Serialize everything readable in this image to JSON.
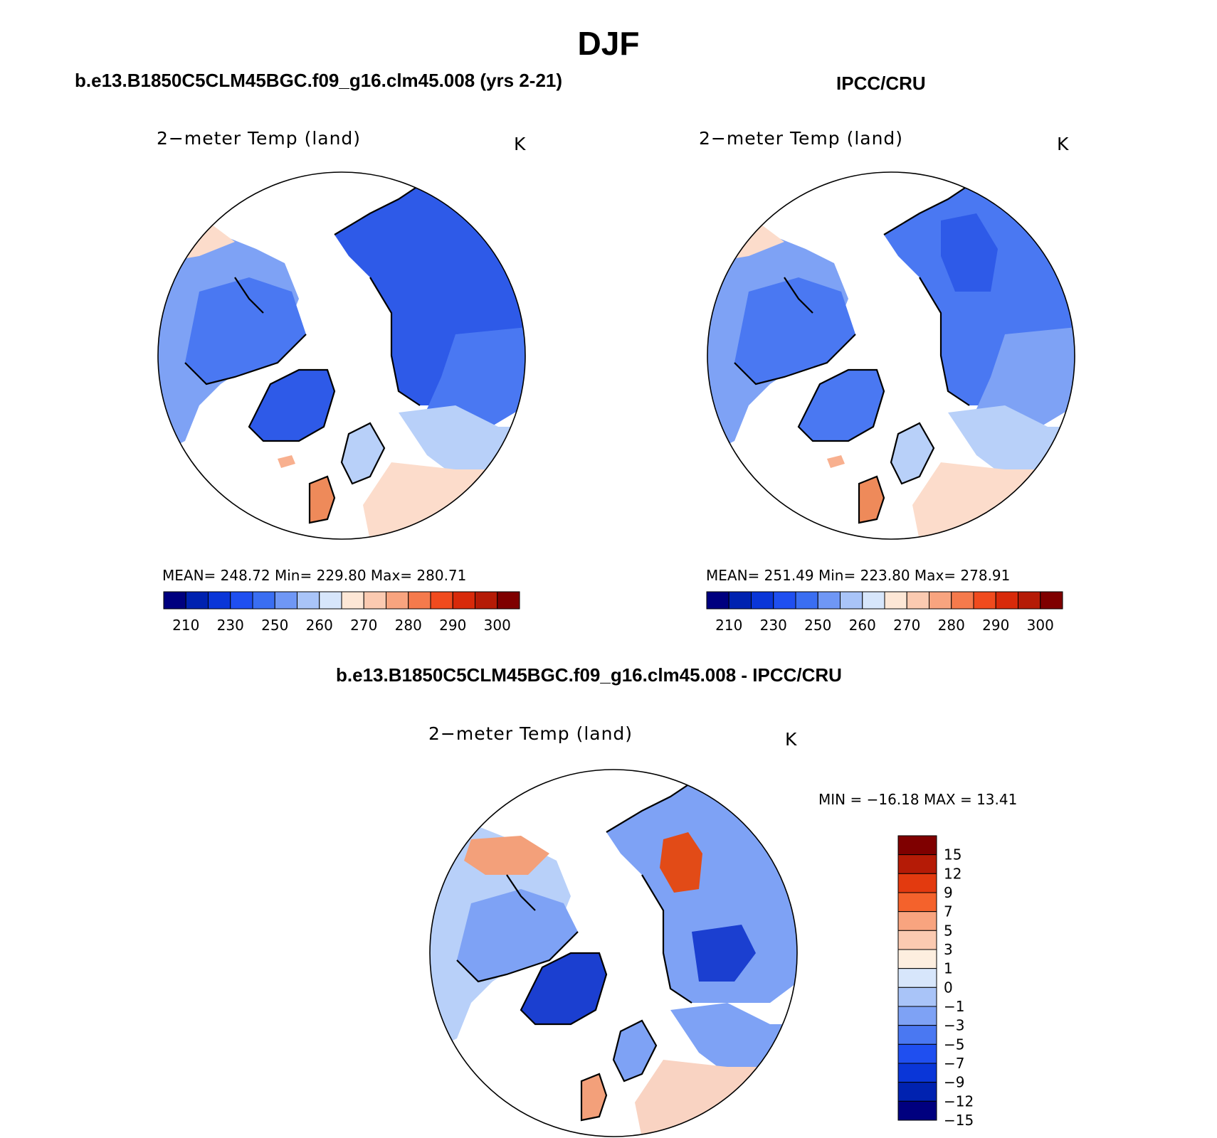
{
  "figure_title": "DJF",
  "panels": [
    {
      "title": "b.e13.B1850C5CLM45BGC.f09_g16.clm45.008 (yrs 2-21)",
      "plot_label": "2−meter Temp (land)",
      "units": "K",
      "stats": {
        "mean": "248.72",
        "min": "229.80",
        "max": "280.71"
      },
      "stats_text": "MEAN= 248.72   Min= 229.80   Max= 280.71"
    },
    {
      "title": "IPCC/CRU",
      "plot_label": "2−meter Temp (land)",
      "units": "K",
      "stats": {
        "mean": "251.49",
        "min": "223.80",
        "max": "278.91"
      },
      "stats_text": "MEAN= 251.49   Min= 223.80   Max= 278.91"
    },
    {
      "title": "b.e13.B1850C5CLM45BGC.f09_g16.clm45.008 - IPCC/CRU",
      "plot_label": "2−meter Temp (land)",
      "units": "K",
      "stats": {
        "min": "−16.18",
        "max": "13.41"
      },
      "stats_text": "MIN = −16.18 MAX =   13.41"
    }
  ],
  "colorbars": {
    "absolute": {
      "colors": [
        "#00007f",
        "#0022b0",
        "#0a36d8",
        "#1f4ff0",
        "#3a6ef2",
        "#6f97f5",
        "#a9c4f8",
        "#d7e6fb",
        "#fde7d6",
        "#fbcab1",
        "#f8a47f",
        "#f57a4c",
        "#f04b1e",
        "#d82a0a",
        "#b51b06",
        "#7f0000"
      ],
      "tick_labels": [
        "210",
        "230",
        "250",
        "260",
        "270",
        "280",
        "290",
        "300"
      ]
    },
    "difference": {
      "colors": [
        "#7f0000",
        "#b51b06",
        "#e33a0f",
        "#f4622c",
        "#f8a47f",
        "#fbcab1",
        "#fdeedf",
        "#d7e6fb",
        "#a9c4f8",
        "#7ea2f5",
        "#4a78f2",
        "#1f4ff0",
        "#0a36d8",
        "#0022b0",
        "#00007f"
      ],
      "tick_labels": [
        "15",
        "12",
        "9",
        "7",
        "5",
        "3",
        "1",
        "0",
        "−1",
        "−3",
        "−5",
        "−7",
        "−9",
        "−12",
        "−15"
      ]
    }
  },
  "map_palette": {
    "ocean": "#ffffff",
    "coast": "#000000",
    "cold_deep": "#2e5ae8",
    "cold": "#4a78f2",
    "cool": "#7ea2f5",
    "cool_light": "#b8d0f9",
    "mild": "#fcdccb",
    "warm": "#f8b08f",
    "warm_dark": "#ee8a5a",
    "diff_warm": "#f3a07a",
    "diff_hot": "#e24b17",
    "diff_light": "#f9d3c2",
    "diff_deep": "#1b3fd0"
  }
}
